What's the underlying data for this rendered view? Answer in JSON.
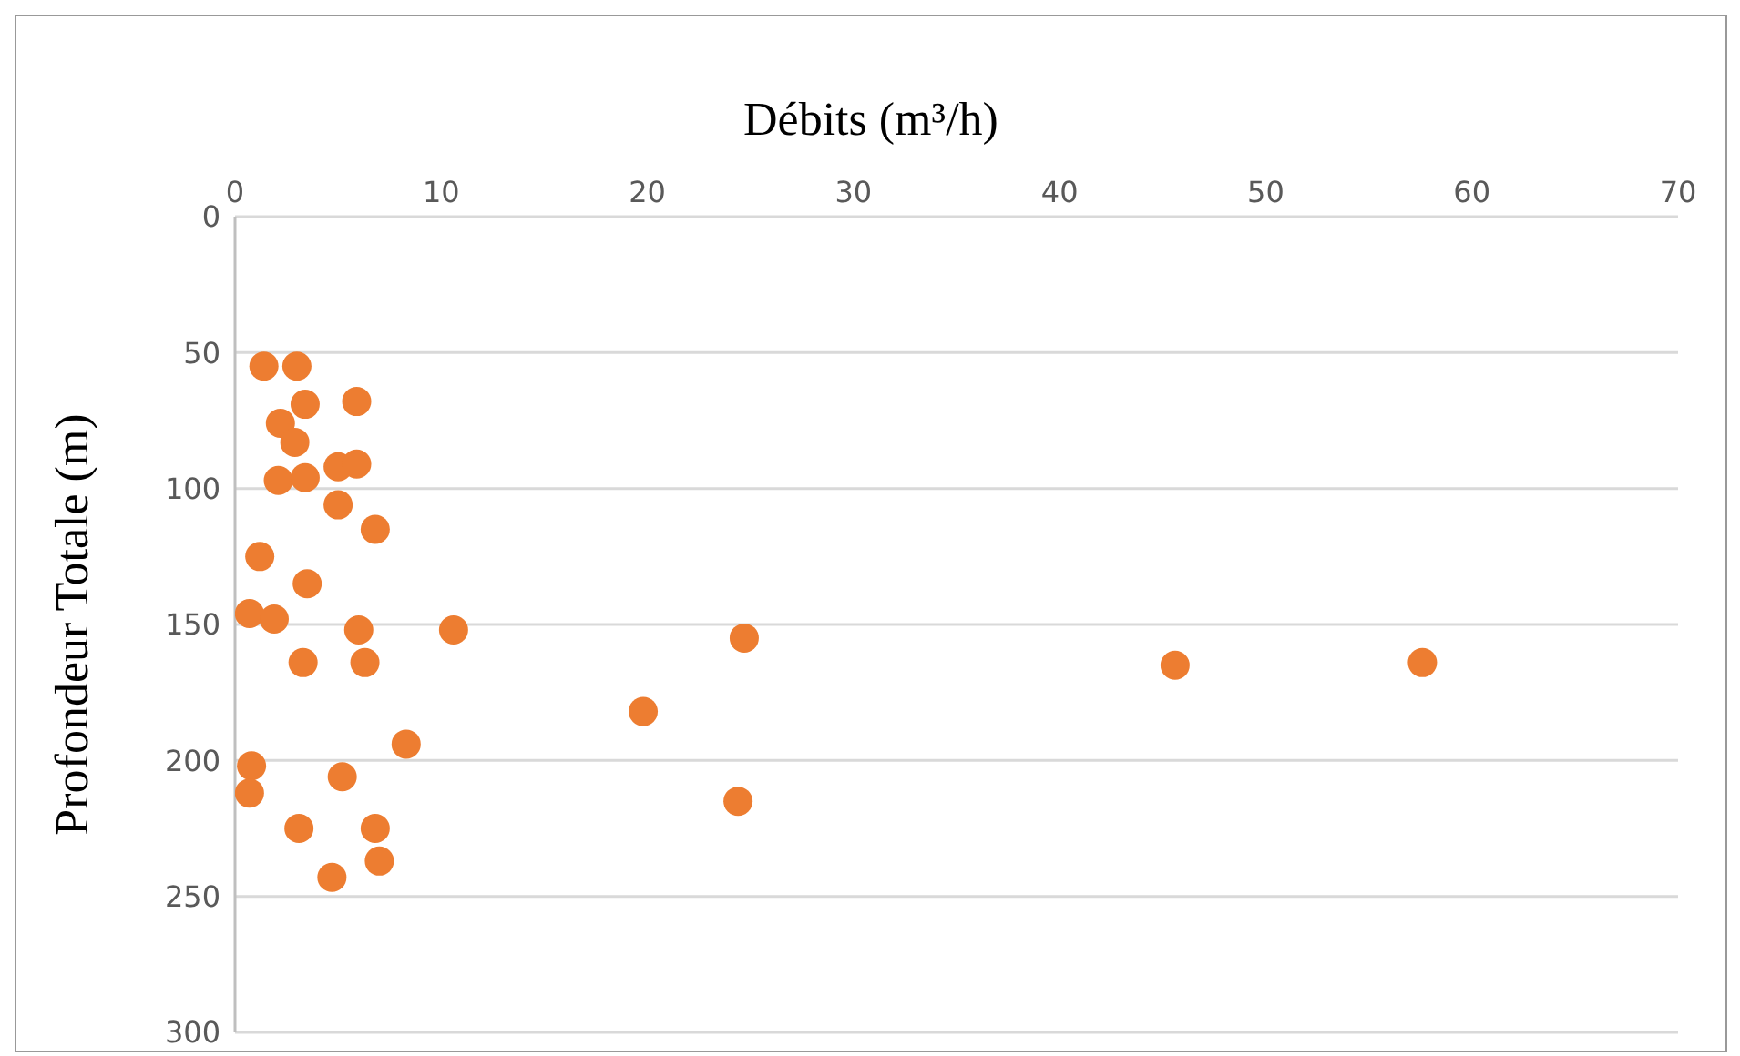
{
  "chart_data": {
    "type": "scatter",
    "xlabel": "Débits (m³/h)",
    "ylabel": "Profondeur Totale (m)",
    "x": [
      1.4,
      3.0,
      5.9,
      3.4,
      2.2,
      2.9,
      5.0,
      5.9,
      2.1,
      3.4,
      5.0,
      6.8,
      1.2,
      3.5,
      0.7,
      1.9,
      6.0,
      10.6,
      24.7,
      3.3,
      6.3,
      45.6,
      57.6,
      19.8,
      8.3,
      0.8,
      5.2,
      0.7,
      24.4,
      3.1,
      6.8,
      7.0,
      4.7
    ],
    "series": [
      {
        "color": "#ed7d31",
        "values": [
          55,
          55,
          68,
          69,
          76,
          83,
          92,
          91,
          97,
          96,
          106,
          115,
          125,
          135,
          146,
          148,
          152,
          152,
          155,
          164,
          164,
          165,
          164,
          182,
          194,
          202,
          206,
          212,
          215,
          225,
          225,
          237,
          243
        ]
      }
    ],
    "xlim": [
      0,
      70
    ],
    "xticks": [
      0,
      10,
      20,
      30,
      40,
      50,
      60,
      70
    ],
    "ylim": [
      300,
      0
    ],
    "yticks": [
      0,
      50,
      100,
      150,
      200,
      250,
      300
    ],
    "grid": "y",
    "marker": "circle"
  }
}
